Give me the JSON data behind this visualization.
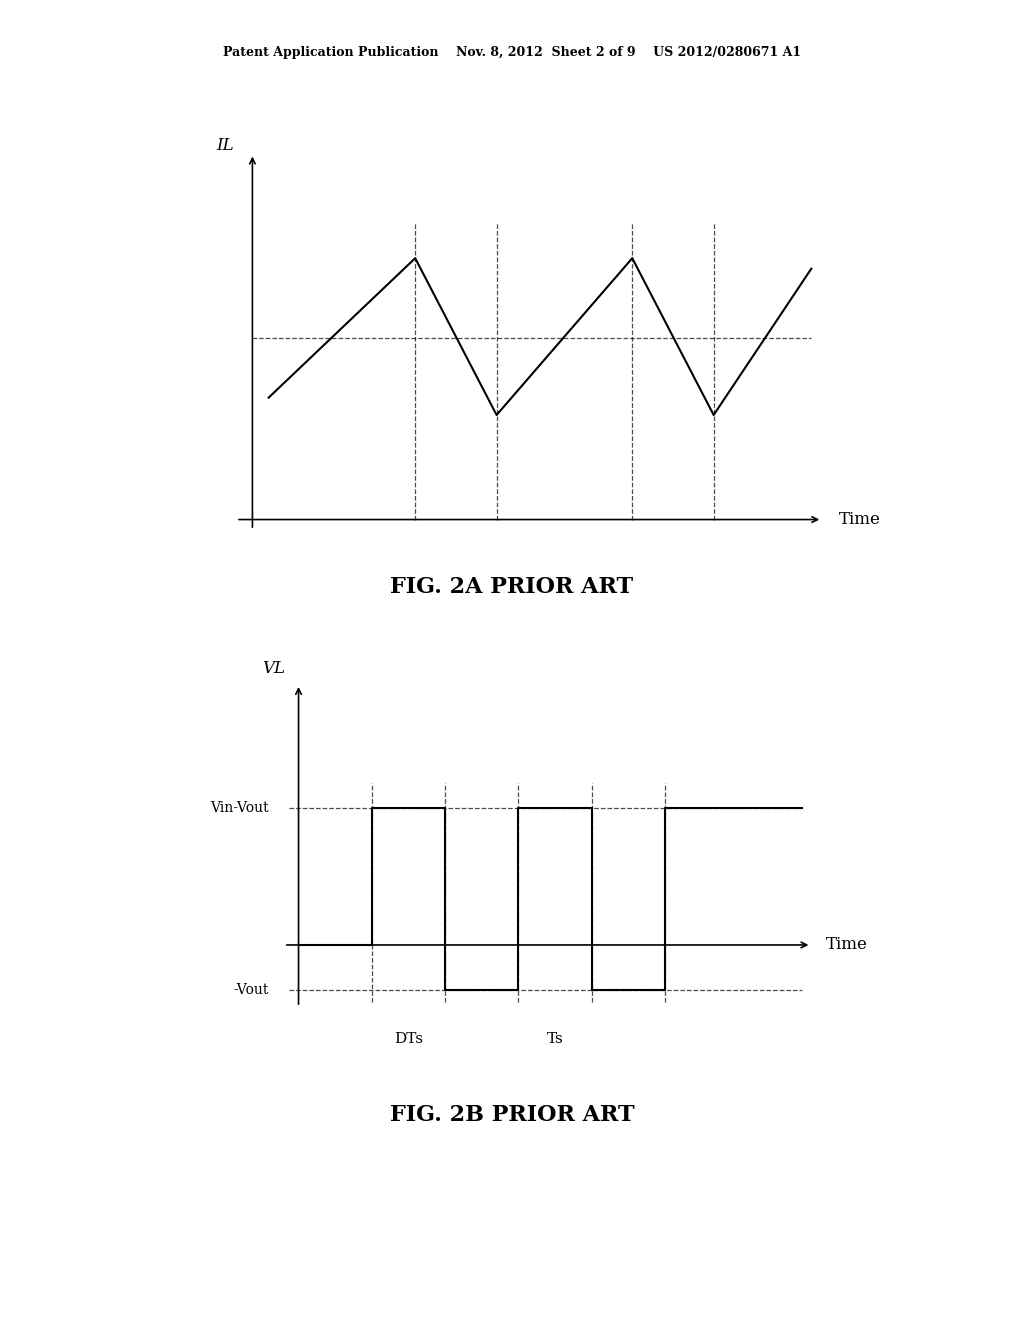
{
  "bg_color": "#ffffff",
  "header_text": "Patent Application Publication    Nov. 8, 2012  Sheet 2 of 9    US 2012/0280671 A1",
  "fig2a_title": "FIG. 2A PRIOR ART",
  "fig2b_title": "FIG. 2B PRIOR ART",
  "fig2a_ylabel": "IL",
  "fig2a_xlabel": "Time",
  "fig2b_ylabel": "VL",
  "fig2b_xlabel": "Time",
  "fig2b_label_vin_vout": "Vin-Vout",
  "fig2b_label_vout": "-Vout",
  "fig2b_label_dts": "DTs",
  "fig2b_label_ts": "Ts"
}
